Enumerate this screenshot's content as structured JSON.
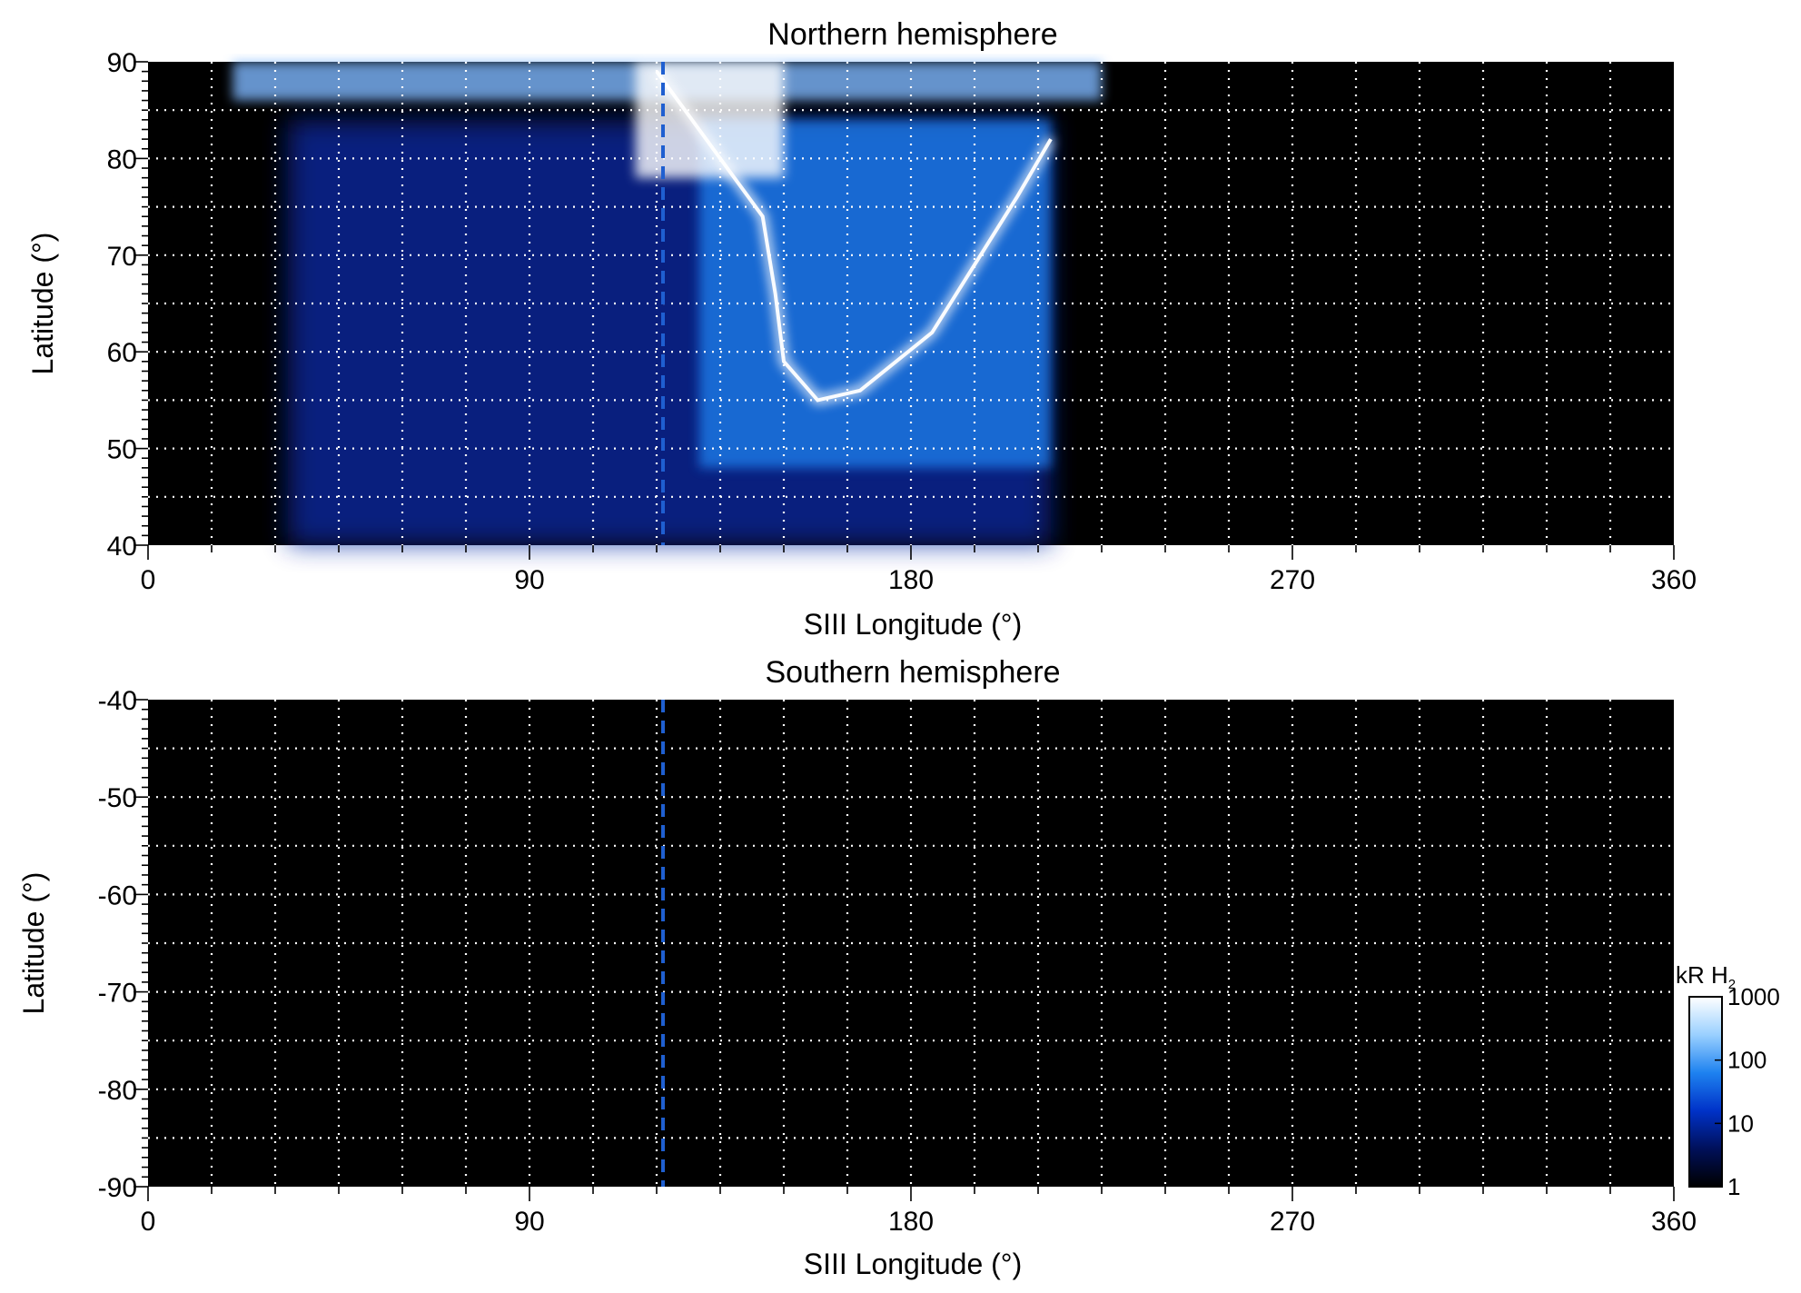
{
  "chart_data": [
    {
      "type": "heatmap",
      "title": "Northern hemisphere",
      "xlabel": "SIII Longitude (°)",
      "ylabel": "Latitude (°)",
      "xlim": [
        0,
        360
      ],
      "ylim": [
        40,
        90
      ],
      "xticks": [
        0,
        90,
        180,
        270,
        360
      ],
      "yticks": [
        40,
        50,
        60,
        70,
        80,
        90
      ],
      "grid": true,
      "marker_longitude": 121.5,
      "background": "#000000",
      "emission_regions": [
        {
          "lon_min": 33,
          "lon_max": 213,
          "lat_min": 40,
          "lat_max": 84,
          "intensity_kR": 10,
          "color": "#0a2aa8"
        },
        {
          "lon_min": 130,
          "lon_max": 213,
          "lat_min": 48,
          "lat_max": 84,
          "intensity_kR": 100,
          "color": "#1e7be8"
        },
        {
          "lon_min": 20,
          "lon_max": 225,
          "lat_min": 86,
          "lat_max": 90,
          "intensity_kR": 300,
          "color": "#7fb8ff"
        },
        {
          "lon_min": 115,
          "lon_max": 150,
          "lat_min": 78,
          "lat_max": 90,
          "intensity_kR": 1000,
          "color": "#ffffff"
        }
      ],
      "main_oval_arc": [
        {
          "lon": 120,
          "lat": 89
        },
        {
          "lon": 135,
          "lat": 80
        },
        {
          "lon": 145,
          "lat": 74
        },
        {
          "lon": 148,
          "lat": 66
        },
        {
          "lon": 150,
          "lat": 59
        },
        {
          "lon": 158,
          "lat": 55
        },
        {
          "lon": 168,
          "lat": 56
        },
        {
          "lon": 185,
          "lat": 62
        },
        {
          "lon": 205,
          "lat": 76
        },
        {
          "lon": 213,
          "lat": 82
        }
      ]
    },
    {
      "type": "heatmap",
      "title": "Southern hemisphere",
      "xlabel": "SIII Longitude (°)",
      "ylabel": "Latitude (°)",
      "xlim": [
        0,
        360
      ],
      "ylim": [
        -90,
        -40
      ],
      "xticks": [
        0,
        90,
        180,
        270,
        360
      ],
      "yticks": [
        -40,
        -50,
        -60,
        -70,
        -80,
        -90
      ],
      "grid": true,
      "marker_longitude": 121.5,
      "background": "#000000",
      "emission_regions": []
    }
  ],
  "colorbar": {
    "label_main": "kR H",
    "label_sub": "2",
    "scale": "log",
    "ticks": [
      "1",
      "10",
      "100",
      "1000"
    ],
    "colors": [
      "#000000",
      "#00105a",
      "#0032c8",
      "#1e82f0",
      "#9ad0ff",
      "#ffffff"
    ]
  }
}
